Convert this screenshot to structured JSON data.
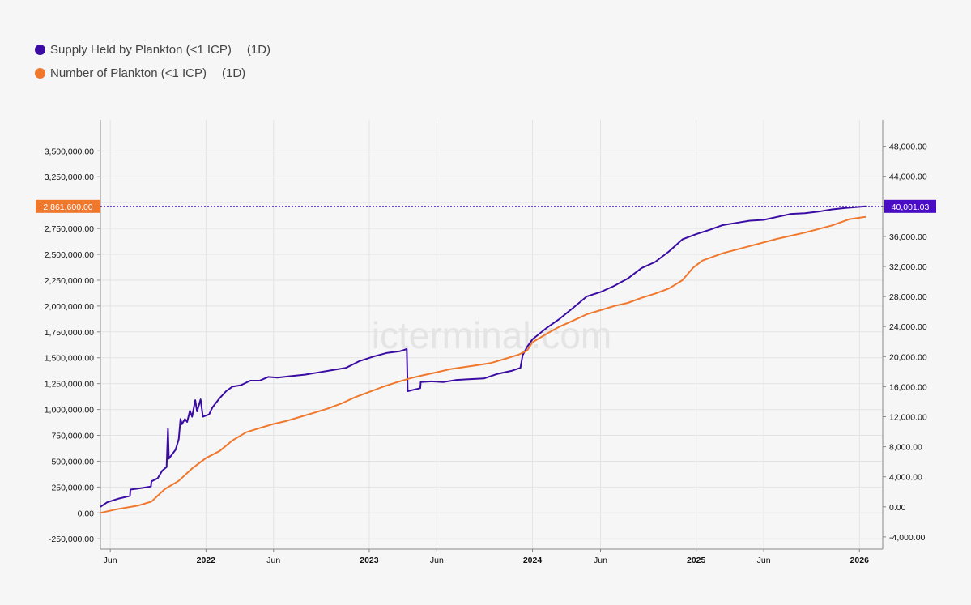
{
  "legend": [
    {
      "label": "Supply Held by Plankton (<1 ICP)",
      "interval": "(1D)",
      "color": "#3a0ca3"
    },
    {
      "label": "Number of Plankton (<1 ICP)",
      "interval": "(1D)",
      "color": "#f0782d"
    }
  ],
  "watermark": "icterminal.com",
  "current": {
    "left_label": "2,861,600.00",
    "left_value": 2861600,
    "left_color": "#f0782d",
    "right_label": "40,001.03",
    "right_value": 40001.03,
    "right_color": "#4a0cc4"
  },
  "chart_data": {
    "type": "line",
    "x_axis": {
      "ticks": [
        {
          "date": "2021-06-01",
          "label": "Jun"
        },
        {
          "date": "2022-01-01",
          "label": "2022"
        },
        {
          "date": "2022-06-01",
          "label": "Jun"
        },
        {
          "date": "2023-01-01",
          "label": "2023"
        },
        {
          "date": "2023-06-01",
          "label": "Jun"
        },
        {
          "date": "2024-01-01",
          "label": "2024"
        },
        {
          "date": "2024-06-01",
          "label": "Jun"
        },
        {
          "date": "2025-01-01",
          "label": "2025"
        },
        {
          "date": "2025-06-01",
          "label": "Jun"
        },
        {
          "date": "2026-01-01",
          "label": "2026"
        }
      ]
    },
    "y_left": {
      "range": [
        -350000,
        3800000
      ],
      "ticks": [
        {
          "value": -250000,
          "label": "-250,000.00"
        },
        {
          "value": 0,
          "label": "0.00"
        },
        {
          "value": 250000,
          "label": "250,000.00"
        },
        {
          "value": 500000,
          "label": "500,000.00"
        },
        {
          "value": 750000,
          "label": "750,000.00"
        },
        {
          "value": 1000000,
          "label": "1,000,000.00"
        },
        {
          "value": 1250000,
          "label": "1,250,000.00"
        },
        {
          "value": 1500000,
          "label": "1,500,000.00"
        },
        {
          "value": 1750000,
          "label": "1,750,000.00"
        },
        {
          "value": 2000000,
          "label": "2,000,000.00"
        },
        {
          "value": 2250000,
          "label": "2,250,000.00"
        },
        {
          "value": 2500000,
          "label": "2,500,000.00"
        },
        {
          "value": 2750000,
          "label": "2,750,000.00"
        },
        {
          "value": 3000000,
          "label": "3,000,000.00"
        },
        {
          "value": 3250000,
          "label": "3,250,000.00"
        },
        {
          "value": 3500000,
          "label": "3,500,000.00"
        }
      ]
    },
    "y_right": {
      "range": [
        -5630,
        51520
      ],
      "ticks": [
        {
          "value": -4000,
          "label": "-4,000.00"
        },
        {
          "value": 0,
          "label": "0.00"
        },
        {
          "value": 4000,
          "label": "4,000.00"
        },
        {
          "value": 8000,
          "label": "8,000.00"
        },
        {
          "value": 12000,
          "label": "12,000.00"
        },
        {
          "value": 16000,
          "label": "16,000.00"
        },
        {
          "value": 20000,
          "label": "20,000.00"
        },
        {
          "value": 24000,
          "label": "24,000.00"
        },
        {
          "value": 28000,
          "label": "28,000.00"
        },
        {
          "value": 32000,
          "label": "32,000.00"
        },
        {
          "value": 36000,
          "label": "36,000.00"
        },
        {
          "value": 40000,
          "label": "40,000.00"
        },
        {
          "value": 44000,
          "label": "44,000.00"
        },
        {
          "value": 48000,
          "label": "48,000.00"
        }
      ]
    },
    "grid": true,
    "series": [
      {
        "name": "Supply Held by Plankton (<1 ICP)",
        "axis": "right",
        "color": "#3a0ca3",
        "points": [
          [
            "2021-05-10",
            0
          ],
          [
            "2021-05-25",
            600
          ],
          [
            "2021-06-20",
            1100
          ],
          [
            "2021-07-15",
            1450
          ],
          [
            "2021-07-16",
            2300
          ],
          [
            "2021-08-10",
            2500
          ],
          [
            "2021-08-31",
            2700
          ],
          [
            "2021-09-01",
            3400
          ],
          [
            "2021-09-15",
            3800
          ],
          [
            "2021-09-25",
            4800
          ],
          [
            "2021-10-05",
            5300
          ],
          [
            "2021-10-08",
            10400
          ],
          [
            "2021-10-10",
            6400
          ],
          [
            "2021-10-25",
            7600
          ],
          [
            "2021-11-01",
            9000
          ],
          [
            "2021-11-05",
            11700
          ],
          [
            "2021-11-08",
            11000
          ],
          [
            "2021-11-15",
            11700
          ],
          [
            "2021-11-20",
            11300
          ],
          [
            "2021-11-26",
            12800
          ],
          [
            "2021-12-01",
            12000
          ],
          [
            "2021-12-08",
            14200
          ],
          [
            "2021-12-12",
            12700
          ],
          [
            "2021-12-20",
            14300
          ],
          [
            "2021-12-25",
            12000
          ],
          [
            "2022-01-08",
            12300
          ],
          [
            "2022-01-15",
            13200
          ],
          [
            "2022-02-01",
            14500
          ],
          [
            "2022-02-15",
            15400
          ],
          [
            "2022-03-01",
            16000
          ],
          [
            "2022-03-20",
            16200
          ],
          [
            "2022-04-10",
            16800
          ],
          [
            "2022-05-01",
            16800
          ],
          [
            "2022-05-20",
            17300
          ],
          [
            "2022-06-10",
            17200
          ],
          [
            "2022-07-10",
            17400
          ],
          [
            "2022-08-10",
            17600
          ],
          [
            "2022-09-10",
            17900
          ],
          [
            "2022-10-10",
            18200
          ],
          [
            "2022-11-10",
            18500
          ],
          [
            "2022-12-10",
            19400
          ],
          [
            "2023-01-10",
            20000
          ],
          [
            "2023-02-10",
            20500
          ],
          [
            "2023-03-10",
            20700
          ],
          [
            "2023-03-26",
            21000
          ],
          [
            "2023-03-28",
            15400
          ],
          [
            "2023-04-25",
            15800
          ],
          [
            "2023-04-26",
            16600
          ],
          [
            "2023-05-20",
            16700
          ],
          [
            "2023-06-15",
            16600
          ],
          [
            "2023-07-15",
            16900
          ],
          [
            "2023-08-15",
            17000
          ],
          [
            "2023-09-15",
            17100
          ],
          [
            "2023-10-15",
            17700
          ],
          [
            "2023-11-15",
            18100
          ],
          [
            "2023-12-05",
            18500
          ],
          [
            "2023-12-10",
            20200
          ],
          [
            "2023-12-20",
            21300
          ],
          [
            "2024-01-01",
            22300
          ],
          [
            "2024-02-01",
            23800
          ],
          [
            "2024-03-01",
            25000
          ],
          [
            "2024-04-01",
            26500
          ],
          [
            "2024-05-01",
            28000
          ],
          [
            "2024-06-01",
            28600
          ],
          [
            "2024-07-01",
            29400
          ],
          [
            "2024-08-01",
            30400
          ],
          [
            "2024-09-01",
            31800
          ],
          [
            "2024-10-01",
            32600
          ],
          [
            "2024-11-01",
            34000
          ],
          [
            "2024-12-01",
            35600
          ],
          [
            "2025-01-01",
            36300
          ],
          [
            "2025-02-01",
            36900
          ],
          [
            "2025-03-01",
            37500
          ],
          [
            "2025-04-01",
            37800
          ],
          [
            "2025-05-01",
            38100
          ],
          [
            "2025-06-01",
            38200
          ],
          [
            "2025-07-01",
            38600
          ],
          [
            "2025-08-01",
            39000
          ],
          [
            "2025-09-01",
            39100
          ],
          [
            "2025-10-01",
            39300
          ],
          [
            "2025-11-01",
            39600
          ],
          [
            "2025-12-01",
            39800
          ],
          [
            "2026-01-15",
            40001.03
          ]
        ]
      },
      {
        "name": "Number of Plankton (<1 ICP)",
        "axis": "left",
        "color": "#f0782d",
        "points": [
          [
            "2021-05-10",
            0
          ],
          [
            "2021-06-15",
            35000
          ],
          [
            "2021-08-01",
            70000
          ],
          [
            "2021-09-01",
            110000
          ],
          [
            "2021-10-01",
            230000
          ],
          [
            "2021-11-01",
            310000
          ],
          [
            "2021-12-01",
            430000
          ],
          [
            "2022-01-01",
            530000
          ],
          [
            "2022-02-01",
            600000
          ],
          [
            "2022-03-01",
            700000
          ],
          [
            "2022-04-01",
            780000
          ],
          [
            "2022-05-01",
            820000
          ],
          [
            "2022-06-01",
            860000
          ],
          [
            "2022-07-01",
            890000
          ],
          [
            "2022-08-01",
            930000
          ],
          [
            "2022-09-01",
            970000
          ],
          [
            "2022-10-01",
            1010000
          ],
          [
            "2022-11-01",
            1060000
          ],
          [
            "2022-12-01",
            1120000
          ],
          [
            "2023-01-01",
            1170000
          ],
          [
            "2023-02-01",
            1220000
          ],
          [
            "2023-03-01",
            1260000
          ],
          [
            "2023-04-01",
            1300000
          ],
          [
            "2023-05-01",
            1330000
          ],
          [
            "2023-06-01",
            1360000
          ],
          [
            "2023-07-01",
            1390000
          ],
          [
            "2023-08-01",
            1410000
          ],
          [
            "2023-09-01",
            1430000
          ],
          [
            "2023-10-01",
            1450000
          ],
          [
            "2023-11-01",
            1490000
          ],
          [
            "2023-12-01",
            1530000
          ],
          [
            "2023-12-20",
            1570000
          ],
          [
            "2024-01-01",
            1650000
          ],
          [
            "2024-02-01",
            1730000
          ],
          [
            "2024-03-01",
            1800000
          ],
          [
            "2024-04-01",
            1860000
          ],
          [
            "2024-05-01",
            1920000
          ],
          [
            "2024-06-01",
            1960000
          ],
          [
            "2024-07-01",
            2000000
          ],
          [
            "2024-08-01",
            2030000
          ],
          [
            "2024-09-01",
            2080000
          ],
          [
            "2024-10-01",
            2120000
          ],
          [
            "2024-11-01",
            2170000
          ],
          [
            "2024-12-01",
            2250000
          ],
          [
            "2024-12-25",
            2370000
          ],
          [
            "2025-01-15",
            2440000
          ],
          [
            "2025-03-01",
            2510000
          ],
          [
            "2025-05-01",
            2580000
          ],
          [
            "2025-07-01",
            2650000
          ],
          [
            "2025-09-01",
            2710000
          ],
          [
            "2025-11-01",
            2780000
          ],
          [
            "2025-12-10",
            2840000
          ],
          [
            "2026-01-15",
            2861600
          ]
        ]
      }
    ]
  }
}
